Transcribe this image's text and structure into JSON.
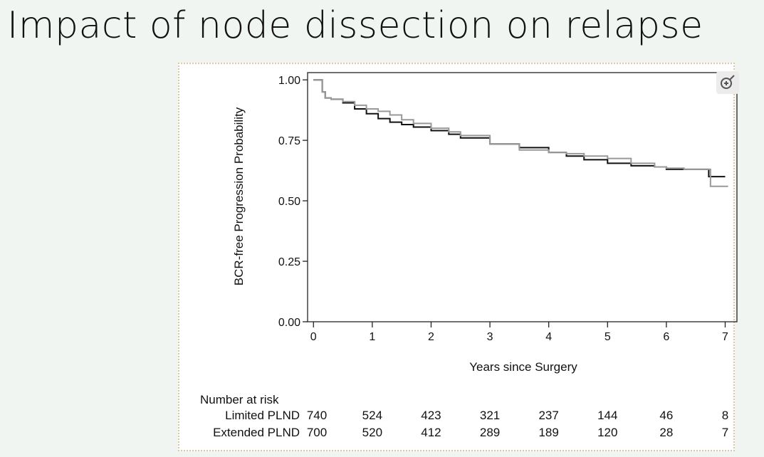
{
  "title": "Impact of node dissection on relapse",
  "icons": {
    "zoom": "zoom-in-icon"
  },
  "chart_data": {
    "type": "line",
    "title": "",
    "xlabel": "Years since Surgery",
    "ylabel": "BCR-free Progression Probability",
    "xlim": [
      -0.1,
      7.2
    ],
    "ylim": [
      0,
      1.03
    ],
    "xticks": [
      "0",
      "1",
      "2",
      "3",
      "4",
      "5",
      "6",
      "7"
    ],
    "yticks": [
      "0.00",
      "0.25",
      "0.50",
      "0.75",
      "1.00"
    ],
    "grid": false,
    "legend": "none",
    "series": [
      {
        "color": "#111111",
        "x": [
          0,
          0.1,
          0.15,
          0.2,
          0.3,
          0.5,
          0.7,
          0.9,
          1.1,
          1.3,
          1.5,
          1.7,
          2.0,
          2.3,
          2.5,
          3.0,
          3.5,
          4.0,
          4.3,
          4.6,
          5.0,
          5.4,
          5.8,
          6.0,
          6.3,
          6.7,
          6.72,
          6.8,
          7.0
        ],
        "y": [
          1.0,
          1.0,
          0.95,
          0.925,
          0.92,
          0.905,
          0.88,
          0.86,
          0.84,
          0.825,
          0.815,
          0.805,
          0.79,
          0.775,
          0.76,
          0.735,
          0.72,
          0.7,
          0.685,
          0.67,
          0.655,
          0.645,
          0.64,
          0.63,
          0.63,
          0.63,
          0.6,
          0.6,
          0.6
        ]
      },
      {
        "color": "#999999",
        "x": [
          0,
          0.1,
          0.15,
          0.2,
          0.3,
          0.5,
          0.7,
          0.9,
          1.1,
          1.3,
          1.5,
          1.7,
          2.0,
          2.3,
          2.5,
          3.0,
          3.5,
          4.0,
          4.3,
          4.6,
          5.0,
          5.4,
          5.8,
          6.0,
          6.3,
          6.7,
          6.75,
          6.8,
          7.05
        ],
        "y": [
          1.0,
          1.0,
          0.95,
          0.925,
          0.92,
          0.91,
          0.895,
          0.88,
          0.87,
          0.855,
          0.835,
          0.82,
          0.8,
          0.785,
          0.77,
          0.735,
          0.71,
          0.7,
          0.695,
          0.685,
          0.675,
          0.655,
          0.64,
          0.635,
          0.63,
          0.63,
          0.56,
          0.56,
          0.56
        ]
      }
    ],
    "risk_table": {
      "heading": "Number at risk",
      "times": [
        0,
        1,
        2,
        3,
        4,
        5,
        6,
        7
      ],
      "rows": [
        {
          "label": "Limited PLND",
          "values": [
            "740",
            "524",
            "423",
            "321",
            "237",
            "144",
            "46",
            "8"
          ]
        },
        {
          "label": "Extended PLND",
          "values": [
            "700",
            "520",
            "412",
            "289",
            "189",
            "120",
            "28",
            "7"
          ]
        }
      ]
    }
  }
}
